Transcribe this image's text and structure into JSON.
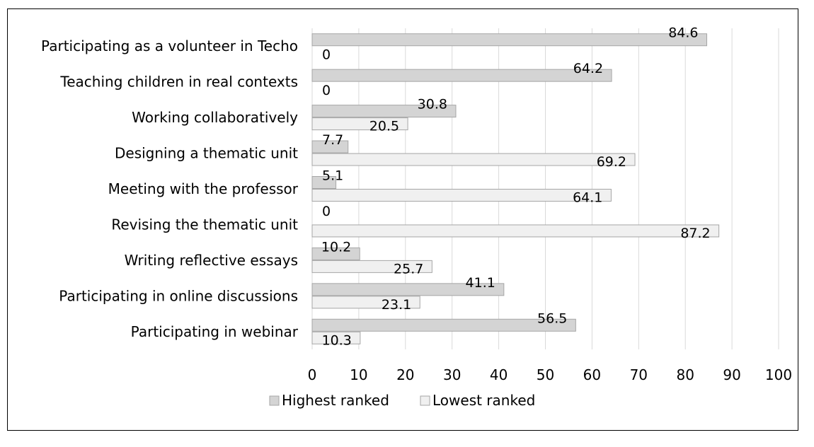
{
  "chart_data": {
    "type": "bar",
    "orientation": "horizontal",
    "categories": [
      "Participating as a volunteer in Techo",
      "Teaching children in real contexts",
      "Working collaboratively",
      "Designing a thematic unit",
      "Meeting with the professor",
      "Revising the thematic unit",
      "Writing reflective essays",
      "Participating in online discussions",
      "Participating in webinar"
    ],
    "series": [
      {
        "name": "Highest ranked",
        "color": "#d4d4d4",
        "values": [
          84.6,
          64.2,
          30.8,
          7.7,
          5.1,
          0,
          10.2,
          41.1,
          56.5
        ],
        "labels": [
          "84.6",
          "64.2",
          "30.8",
          "7.7",
          "5.1",
          "0",
          "10.2",
          "41.1",
          "56.5"
        ]
      },
      {
        "name": "Lowest ranked",
        "color": "#f0f0f0",
        "values": [
          0,
          0,
          20.5,
          69.2,
          64.1,
          87.2,
          25.7,
          23.1,
          10.3
        ],
        "labels": [
          "0",
          "0",
          "20.5",
          "69.2",
          "64.1",
          "87.2",
          "25.7",
          "23.1",
          "10.3"
        ]
      }
    ],
    "xlim": [
      0,
      100
    ],
    "x_ticks": [
      "0",
      "10",
      "20",
      "30",
      "40",
      "50",
      "60",
      "70",
      "80",
      "90",
      "100"
    ],
    "grid": true,
    "legend_position": "bottom"
  }
}
